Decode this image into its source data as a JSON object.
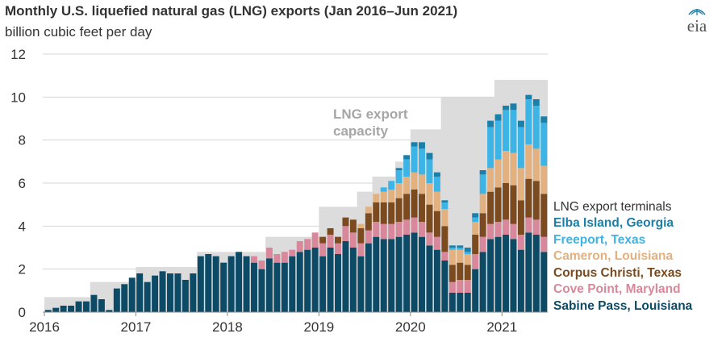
{
  "header": {
    "title": "Monthly U.S. liquefied natural gas (LNG) exports (Jan 2016–Jun 2021)",
    "subtitle": "billion cubic feet per day",
    "logo_text": "eia",
    "logo_color": "#1c7ca6"
  },
  "chart_data": {
    "type": "bar",
    "stacked": true,
    "title": "Monthly U.S. liquefied natural gas (LNG) exports (Jan 2016–Jun 2021)",
    "ylabel": "billion cubic feet per day",
    "xlabel": "",
    "ylim": [
      0,
      12
    ],
    "yticks": [
      0,
      2,
      4,
      6,
      8,
      10,
      12
    ],
    "xticks": [
      "2016",
      "2017",
      "2018",
      "2019",
      "2020",
      "2021"
    ],
    "grid": true,
    "legend_position": "right",
    "legend_title": "LNG export terminals",
    "capacity_label": "LNG export capacity",
    "capacity_color": "#dcdcdc",
    "categories": [
      "2016-01",
      "2016-02",
      "2016-03",
      "2016-04",
      "2016-05",
      "2016-06",
      "2016-07",
      "2016-08",
      "2016-09",
      "2016-10",
      "2016-11",
      "2016-12",
      "2017-01",
      "2017-02",
      "2017-03",
      "2017-04",
      "2017-05",
      "2017-06",
      "2017-07",
      "2017-08",
      "2017-09",
      "2017-10",
      "2017-11",
      "2017-12",
      "2018-01",
      "2018-02",
      "2018-03",
      "2018-04",
      "2018-05",
      "2018-06",
      "2018-07",
      "2018-08",
      "2018-09",
      "2018-10",
      "2018-11",
      "2018-12",
      "2019-01",
      "2019-02",
      "2019-03",
      "2019-04",
      "2019-05",
      "2019-06",
      "2019-07",
      "2019-08",
      "2019-09",
      "2019-10",
      "2019-11",
      "2019-12",
      "2020-01",
      "2020-02",
      "2020-03",
      "2020-04",
      "2020-05",
      "2020-06",
      "2020-07",
      "2020-08",
      "2020-09",
      "2020-10",
      "2020-11",
      "2020-12",
      "2021-01",
      "2021-02",
      "2021-03",
      "2021-04",
      "2021-05",
      "2021-06"
    ],
    "capacity": [
      0.7,
      0.7,
      0.7,
      0.7,
      0.7,
      0.7,
      1.4,
      1.4,
      1.4,
      1.4,
      1.4,
      1.4,
      2.1,
      2.1,
      2.1,
      2.1,
      2.1,
      2.1,
      2.1,
      2.1,
      2.8,
      2.8,
      2.8,
      2.8,
      2.8,
      2.8,
      2.8,
      2.8,
      2.8,
      3.5,
      3.5,
      3.5,
      3.5,
      3.5,
      3.5,
      3.5,
      4.9,
      4.9,
      4.9,
      4.9,
      4.9,
      5.6,
      5.6,
      6.3,
      6.3,
      6.3,
      7.0,
      7.0,
      8.5,
      8.5,
      8.5,
      8.5,
      10.0,
      10.0,
      10.0,
      10.0,
      10.0,
      10.0,
      10.0,
      10.8,
      10.8,
      10.8,
      10.8,
      10.8,
      10.8,
      10.8
    ],
    "series": [
      {
        "name": "Sabine Pass, Louisiana",
        "color": "#0d4a66",
        "values": [
          0.1,
          0.2,
          0.3,
          0.3,
          0.5,
          0.5,
          0.8,
          0.6,
          0.1,
          1.1,
          1.3,
          1.6,
          1.8,
          1.4,
          1.7,
          1.9,
          1.8,
          1.8,
          1.5,
          1.8,
          2.6,
          2.7,
          2.6,
          2.3,
          2.6,
          2.8,
          2.6,
          2.3,
          2.0,
          2.5,
          2.3,
          2.3,
          2.6,
          2.8,
          2.9,
          3.0,
          2.6,
          3.0,
          2.7,
          3.3,
          3.0,
          2.6,
          3.2,
          3.5,
          3.4,
          3.4,
          3.5,
          3.6,
          3.7,
          3.5,
          3.1,
          2.9,
          2.4,
          0.9,
          0.9,
          0.9,
          2.0,
          2.8,
          3.4,
          3.5,
          3.6,
          3.4,
          2.9,
          3.7,
          3.6,
          2.8
        ]
      },
      {
        "name": "Cove Point, Maryland",
        "color": "#d9879a",
        "values": [
          0,
          0,
          0,
          0,
          0,
          0,
          0,
          0,
          0,
          0,
          0,
          0,
          0,
          0,
          0,
          0,
          0,
          0,
          0,
          0,
          0,
          0,
          0,
          0,
          0,
          0,
          0,
          0.3,
          0.4,
          0.5,
          0.4,
          0.5,
          0.3,
          0.5,
          0.5,
          0.7,
          0.6,
          0.6,
          0.5,
          0.7,
          0.7,
          0.6,
          0.6,
          0.7,
          0.7,
          0.7,
          0.7,
          0.7,
          0.7,
          0.7,
          0.6,
          0.6,
          0.4,
          0.5,
          0.6,
          0.6,
          0.7,
          0.7,
          0.7,
          0.7,
          0.7,
          0.7,
          0.7,
          0.7,
          0.7,
          0.7
        ]
      },
      {
        "name": "Corpus Christi, Texas",
        "color": "#7b4a1e",
        "values": [
          0,
          0,
          0,
          0,
          0,
          0,
          0,
          0,
          0,
          0,
          0,
          0,
          0,
          0,
          0,
          0,
          0,
          0,
          0,
          0,
          0,
          0,
          0,
          0,
          0,
          0,
          0,
          0,
          0,
          0,
          0,
          0,
          0,
          0,
          0,
          0,
          0.3,
          0.3,
          0.3,
          0.4,
          0.6,
          0.7,
          0.8,
          0.9,
          1.0,
          1.0,
          1.1,
          1.2,
          1.3,
          1.3,
          1.3,
          1.2,
          1.2,
          0.8,
          0.8,
          0.7,
          0.9,
          1.1,
          1.5,
          1.6,
          1.7,
          1.8,
          1.6,
          1.8,
          1.8,
          2.0
        ]
      },
      {
        "name": "Cameron, Louisiana",
        "color": "#e3b07f",
        "values": [
          0,
          0,
          0,
          0,
          0,
          0,
          0,
          0,
          0,
          0,
          0,
          0,
          0,
          0,
          0,
          0,
          0,
          0,
          0,
          0,
          0,
          0,
          0,
          0,
          0,
          0,
          0,
          0,
          0,
          0,
          0,
          0,
          0,
          0,
          0,
          0,
          0,
          0,
          0,
          0,
          0,
          0.2,
          0.3,
          0.4,
          0.5,
          0.6,
          0.7,
          0.8,
          0.8,
          0.9,
          1.0,
          0.9,
          0.8,
          0.7,
          0.6,
          0.5,
          0.6,
          0.9,
          1.1,
          1.3,
          1.5,
          1.5,
          1.5,
          1.6,
          1.5,
          1.3
        ]
      },
      {
        "name": "Freeport, Texas",
        "color": "#3cb4e6",
        "values": [
          0,
          0,
          0,
          0,
          0,
          0,
          0,
          0,
          0,
          0,
          0,
          0,
          0,
          0,
          0,
          0,
          0,
          0,
          0,
          0,
          0,
          0,
          0,
          0,
          0,
          0,
          0,
          0,
          0,
          0,
          0,
          0,
          0,
          0,
          0,
          0,
          0,
          0,
          0,
          0,
          0,
          0,
          0,
          0,
          0.2,
          0.4,
          0.6,
          0.8,
          1.2,
          1.2,
          1.1,
          0.7,
          0.3,
          0.1,
          0.1,
          0.1,
          0.2,
          0.9,
          1.9,
          1.8,
          1.9,
          2.0,
          1.9,
          2.1,
          2.0,
          2.0
        ]
      },
      {
        "name": "Elba Island, Georgia",
        "color": "#1a7fa9",
        "values": [
          0,
          0,
          0,
          0,
          0,
          0,
          0,
          0,
          0,
          0,
          0,
          0,
          0,
          0,
          0,
          0,
          0,
          0,
          0,
          0,
          0,
          0,
          0,
          0,
          0,
          0,
          0,
          0,
          0,
          0,
          0,
          0,
          0,
          0,
          0,
          0,
          0,
          0,
          0,
          0,
          0,
          0,
          0,
          0,
          0,
          0,
          0.1,
          0.2,
          0.2,
          0.3,
          0.3,
          0.2,
          0.1,
          0.1,
          0.1,
          0.2,
          0.2,
          0.2,
          0.3,
          0.3,
          0.2,
          0.3,
          0.3,
          0.2,
          0.3,
          0.3
        ]
      }
    ]
  }
}
